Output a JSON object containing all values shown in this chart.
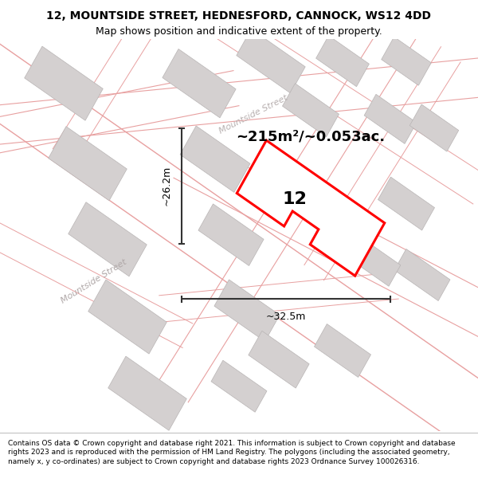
{
  "title_line1": "12, MOUNTSIDE STREET, HEDNESFORD, CANNOCK, WS12 4DD",
  "title_line2": "Map shows position and indicative extent of the property.",
  "footer_text": "Contains OS data © Crown copyright and database right 2021. This information is subject to Crown copyright and database rights 2023 and is reproduced with the permission of HM Land Registry. The polygons (including the associated geometry, namely x, y co-ordinates) are subject to Crown copyright and database rights 2023 Ordnance Survey 100026316.",
  "area_text": "~215m²/~0.053ac.",
  "number_label": "12",
  "dim_width": "~32.5m",
  "dim_height": "~26.2m",
  "street_label1": "Mountside Street",
  "street_label2": "Mountside Street",
  "red_color": "#ff0000",
  "gray_building": "#d4d0d0",
  "building_edge": "#b8b4b4",
  "street_line_color": "#e8a0a0",
  "dim_line_color": "#333333",
  "map_bg": "#ffffff",
  "title_bg": "#ffffff",
  "footer_bg": "#ffffff",
  "road_fill": "#f5f0f0",
  "title_fontsize": 10,
  "subtitle_fontsize": 9,
  "footer_fontsize": 6.5,
  "area_fontsize": 13,
  "label_fontsize": 16,
  "dim_fontsize": 9,
  "street_fontsize": 8
}
